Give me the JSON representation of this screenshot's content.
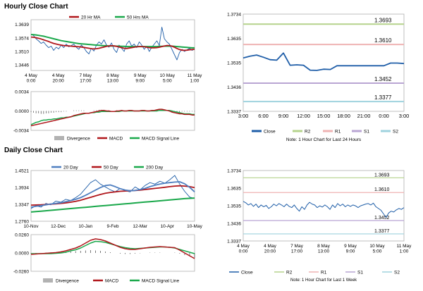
{
  "sections": {
    "hourly_title": "Hourly Close Chart",
    "daily_title": "Daily Close Chart"
  },
  "colors": {
    "close_line": "#1f5ea8",
    "ma20": "#b0161b",
    "ma50": "#1aa84b",
    "ma200": "#1aa84b",
    "r2": "#b5d38c",
    "r1": "#efb3b3",
    "s1": "#b9a5d3",
    "s2": "#9fd2de",
    "divergence": "#555555",
    "macd": "#b0161b",
    "signal": "#1aa84b",
    "ma20_daily": "#4f7fc0"
  },
  "chart_data": [
    {
      "id": "hourly_price",
      "type": "line",
      "title": "Hourly Close Chart",
      "x_labels": [
        "4 May\n0:00",
        "4 May\n20:00",
        "7 May\n17:00",
        "8 May\n13:00",
        "9 May\n9:00",
        "10 May\n5:00",
        "11 May\n1:00"
      ],
      "y_ticks": [
        "1.3639",
        "1.3574",
        "1.3510",
        "1.3446"
      ],
      "ylim": [
        1.342,
        1.366
      ],
      "series": [
        {
          "name": "20 Hr MA",
          "values": [
            1.3578,
            1.3577,
            1.3575,
            1.3572,
            1.3569,
            1.3565,
            1.3561,
            1.3557,
            1.3552,
            1.3548,
            1.3545,
            1.3542,
            1.354,
            1.3538,
            1.3537,
            1.3536,
            1.3535,
            1.3534,
            1.3533,
            1.3532,
            1.3531,
            1.3529,
            1.3527,
            1.3525,
            1.3523,
            1.3522,
            1.3523,
            1.3525,
            1.3528,
            1.3531,
            1.3534,
            1.3536,
            1.3537,
            1.3536,
            1.3534,
            1.3531,
            1.3528,
            1.3525,
            1.3524,
            1.3526,
            1.3528,
            1.353,
            1.3532,
            1.3533,
            1.3533,
            1.3532,
            1.353,
            1.3528,
            1.3527,
            1.3527,
            1.3528,
            1.353,
            1.3533,
            1.3536,
            1.3538,
            1.3538,
            1.3535,
            1.353,
            1.3524,
            1.3519,
            1.3516,
            1.3515,
            1.3516,
            1.3518,
            1.3519,
            1.352
          ]
        },
        {
          "name": "50 Hrs MA",
          "values": [
            1.359,
            1.3589,
            1.3588,
            1.3586,
            1.3584,
            1.3582,
            1.3579,
            1.3576,
            1.3573,
            1.357,
            1.3567,
            1.3564,
            1.3561,
            1.3559,
            1.3557,
            1.3555,
            1.3553,
            1.3551,
            1.3549,
            1.3547,
            1.3546,
            1.3545,
            1.3544,
            1.3543,
            1.3542,
            1.3541,
            1.354,
            1.3539,
            1.3538,
            1.3537,
            1.3537,
            1.3536,
            1.3536,
            1.3536,
            1.3535,
            1.3535,
            1.3534,
            1.3534,
            1.3533,
            1.3533,
            1.3533,
            1.3533,
            1.3533,
            1.3533,
            1.3533,
            1.3533,
            1.3533,
            1.3533,
            1.3533,
            1.3533,
            1.3533,
            1.3534,
            1.3534,
            1.3535,
            1.3535,
            1.3535,
            1.3535,
            1.3534,
            1.3533,
            1.3532,
            1.3531,
            1.353,
            1.3529,
            1.3528,
            1.3527,
            1.3527
          ]
        },
        {
          "name": "Close",
          "values": [
            1.3592,
            1.3585,
            1.357,
            1.356,
            1.3548,
            1.3555,
            1.354,
            1.3528,
            1.3535,
            1.3515,
            1.353,
            1.3522,
            1.354,
            1.3528,
            1.3545,
            1.3532,
            1.3538,
            1.3545,
            1.353,
            1.352,
            1.354,
            1.3528,
            1.351,
            1.3498,
            1.3525,
            1.3512,
            1.354,
            1.3555,
            1.3545,
            1.3565,
            1.354,
            1.353,
            1.355,
            1.352,
            1.3505,
            1.354,
            1.3525,
            1.351,
            1.3545,
            1.356,
            1.3535,
            1.3545,
            1.3528,
            1.3555,
            1.354,
            1.352,
            1.3535,
            1.351,
            1.353,
            1.3545,
            1.356,
            1.3538,
            1.3625,
            1.357,
            1.3555,
            1.3545,
            1.352,
            1.3495,
            1.347,
            1.3505,
            1.352,
            1.351,
            1.3518,
            1.3525,
            1.3515,
            1.3522
          ]
        }
      ],
      "legend": [
        "20 Hr MA",
        "50 Hrs MA"
      ]
    },
    {
      "id": "hourly_macd",
      "type": "line",
      "y_ticks": [
        "0.0034",
        "0.0000",
        "-0.0034"
      ],
      "ylim": [
        -0.0034,
        0.0034
      ],
      "series": [
        {
          "name": "Divergence",
          "values": [
            -0.0002,
            -0.0003,
            -0.0004,
            -0.0004,
            -0.0005,
            -0.0005,
            -0.0004,
            -0.0004,
            -0.0003,
            -0.0003,
            -0.0002,
            -0.0002,
            -0.0002,
            -0.0001,
            -0.0001,
            0.0,
            0.0,
            0.0001,
            0.0001,
            0.0001,
            0.0001,
            0.0001,
            0.0,
            0.0,
            0.0,
            0.0001,
            0.0001,
            0.0002,
            0.0002,
            0.0002,
            0.0001,
            0.0001,
            0.0,
            0.0,
            0.0001,
            0.0001,
            0.0001,
            0.0,
            0.0,
            0.0001,
            0.0001,
            0.0,
            0.0,
            0.0,
            0.0001,
            0.0001,
            0.0,
            0.0,
            0.0001,
            0.0001,
            0.0002,
            0.0002,
            0.0002,
            0.0001,
            0.0,
            -0.0001,
            -0.0002,
            -0.0002,
            -0.0002,
            -0.0002,
            -0.0001,
            -0.0001,
            -0.0001,
            -0.0001,
            -0.0001,
            -0.0001
          ]
        },
        {
          "name": "MACD",
          "values": [
            -0.0026,
            -0.0025,
            -0.0024,
            -0.0023,
            -0.0022,
            -0.0021,
            -0.002,
            -0.0019,
            -0.0018,
            -0.0017,
            -0.0016,
            -0.0015,
            -0.0014,
            -0.0013,
            -0.0012,
            -0.0011,
            -0.001,
            -0.0008,
            -0.0007,
            -0.0006,
            -0.0005,
            -0.0004,
            -0.0004,
            -0.0004,
            -0.0003,
            -0.0002,
            -0.0001,
            0.0,
            0.0001,
            0.0001,
            0.0,
            0.0,
            -0.0001,
            -0.0001,
            0.0,
            0.0,
            0.0001,
            0.0,
            0.0,
            0.0001,
            0.0001,
            0.0,
            0.0,
            0.0,
            0.0001,
            0.0001,
            0.0,
            0.0,
            0.0001,
            0.0001,
            0.0002,
            0.0003,
            0.0003,
            0.0002,
            0.0001,
            0.0,
            -0.0002,
            -0.0003,
            -0.0004,
            -0.0005,
            -0.0005,
            -0.0006,
            -0.0006,
            -0.0006,
            -0.0007,
            -0.0007
          ]
        },
        {
          "name": "MACD Signal Line",
          "values": [
            -0.0024,
            -0.0022,
            -0.002,
            -0.0019,
            -0.0017,
            -0.0016,
            -0.0016,
            -0.0015,
            -0.0015,
            -0.0014,
            -0.0014,
            -0.0013,
            -0.0012,
            -0.0012,
            -0.0011,
            -0.0011,
            -0.001,
            -0.0009,
            -0.0008,
            -0.0007,
            -0.0006,
            -0.0005,
            -0.0004,
            -0.0004,
            -0.0003,
            -0.0003,
            -0.0002,
            -0.0002,
            -0.0001,
            -0.0001,
            -0.0001,
            -0.0001,
            -0.0001,
            -0.0001,
            -0.0001,
            -0.0001,
            0.0,
            0.0,
            0.0,
            0.0,
            0.0,
            0.0,
            0.0,
            0.0,
            0.0,
            0.0,
            0.0,
            0.0,
            0.0,
            0.0,
            0.0,
            0.0001,
            0.0001,
            0.0001,
            0.0001,
            0.0001,
            0.0,
            -0.0001,
            -0.0002,
            -0.0003,
            -0.0004,
            -0.0005,
            -0.0005,
            -0.0005,
            -0.0006,
            -0.0006
          ]
        }
      ],
      "legend": [
        "Divergence",
        "MACD",
        "MACD Signal Line"
      ]
    },
    {
      "id": "hourly_24h",
      "type": "line",
      "x_labels": [
        "3:00",
        "6:00",
        "9:00",
        "12:00",
        "15:00",
        "18:00",
        "21:00",
        "0:00",
        "3:00"
      ],
      "y_ticks": [
        "1.3734",
        "1.3635",
        "1.3535",
        "1.3436",
        "1.3337"
      ],
      "ylim": [
        1.3337,
        1.3734
      ],
      "levels": [
        {
          "name": "R2",
          "value": 1.3693,
          "label": "1.3693"
        },
        {
          "name": "R1",
          "value": 1.361,
          "label": "1.3610"
        },
        {
          "name": "S1",
          "value": 1.3452,
          "label": "1.3452"
        },
        {
          "name": "S2",
          "value": 1.3377,
          "label": "1.3377"
        }
      ],
      "series": [
        {
          "name": "Close",
          "values": [
            1.3555,
            1.3562,
            1.3567,
            1.3558,
            1.3548,
            1.3546,
            1.3575,
            1.3525,
            1.3527,
            1.3525,
            1.3505,
            1.3504,
            1.3509,
            1.3508,
            1.3523,
            1.3523,
            1.3523,
            1.3523,
            1.3523,
            1.3523,
            1.3523,
            1.3523,
            1.3534,
            1.3534,
            1.3532
          ]
        }
      ],
      "legend": [
        "Close",
        "R2",
        "R1",
        "S1",
        "S2"
      ],
      "note": "Note: 1 Hour Chart for Last 24 Hours"
    },
    {
      "id": "daily_price",
      "type": "line",
      "title": "Daily Close Chart",
      "x_labels": [
        "10-Nov",
        "12-Dec",
        "10-Jan",
        "9-Feb",
        "12-Mar",
        "10-Apr",
        "10-May"
      ],
      "y_ticks": [
        "1.4521",
        "1.3934",
        "1.3347",
        "1.2760"
      ],
      "ylim": [
        1.276,
        1.4521
      ],
      "series": [
        {
          "name": "20 Day",
          "values": [
            1.325,
            1.328,
            1.33,
            1.333,
            1.336,
            1.338,
            1.34,
            1.344,
            1.348,
            1.352,
            1.358,
            1.366,
            1.375,
            1.384,
            1.393,
            1.4,
            1.402,
            1.396,
            1.389,
            1.384,
            1.382,
            1.383,
            1.386,
            1.39,
            1.396,
            1.401,
            1.405,
            1.408,
            1.41,
            1.412,
            1.413,
            1.406,
            1.394,
            1.378
          ]
        },
        {
          "name": "50 Day",
          "values": [
            1.332,
            1.3325,
            1.333,
            1.334,
            1.3355,
            1.3365,
            1.338,
            1.3395,
            1.342,
            1.345,
            1.349,
            1.354,
            1.359,
            1.364,
            1.369,
            1.373,
            1.376,
            1.378,
            1.38,
            1.381,
            1.382,
            1.383,
            1.384,
            1.386,
            1.388,
            1.39,
            1.392,
            1.394,
            1.396,
            1.398,
            1.399,
            1.398,
            1.396,
            1.393
          ]
        },
        {
          "name": "200 Day",
          "values": [
            1.308,
            1.3095,
            1.311,
            1.3125,
            1.314,
            1.3155,
            1.317,
            1.3185,
            1.32,
            1.3215,
            1.323,
            1.3245,
            1.326,
            1.3275,
            1.329,
            1.3305,
            1.332,
            1.3335,
            1.335,
            1.3365,
            1.338,
            1.3395,
            1.341,
            1.3425,
            1.344,
            1.3455,
            1.347,
            1.3485,
            1.35,
            1.3515,
            1.353,
            1.3545,
            1.3555,
            1.3565
          ]
        },
        {
          "name": "Close",
          "values": [
            1.32,
            1.33,
            1.325,
            1.338,
            1.333,
            1.346,
            1.342,
            1.352,
            1.348,
            1.358,
            1.37,
            1.39,
            1.41,
            1.42,
            1.405,
            1.395,
            1.385,
            1.378,
            1.39,
            1.382,
            1.378,
            1.395,
            1.385,
            1.4,
            1.41,
            1.405,
            1.415,
            1.408,
            1.42,
            1.435,
            1.405,
            1.38,
            1.36,
            1.355
          ]
        }
      ],
      "legend": [
        "20 Day",
        "50 Day",
        "200 Day"
      ]
    },
    {
      "id": "daily_macd",
      "type": "line",
      "y_ticks": [
        "0.0260",
        "0.0000",
        "-0.0260"
      ],
      "ylim": [
        -0.026,
        0.026
      ],
      "series": [
        {
          "name": "Divergence",
          "values": [
            -0.001,
            -0.0005,
            0.0,
            0.0005,
            0.001,
            0.001,
            0.0015,
            0.002,
            0.002,
            0.0025,
            0.003,
            0.0035,
            0.004,
            0.0035,
            0.003,
            0.002,
            0.001,
            0.0,
            -0.001,
            -0.0015,
            -0.0015,
            -0.001,
            -0.0005,
            0.0,
            0.0005,
            0.0005,
            0.0005,
            0.0,
            0.0,
            0.0005,
            -0.001,
            -0.003,
            -0.005,
            -0.007
          ]
        },
        {
          "name": "MACD",
          "values": [
            -0.002,
            -0.0015,
            -0.001,
            -0.0005,
            0.0,
            0.0005,
            0.0015,
            0.003,
            0.005,
            0.007,
            0.01,
            0.014,
            0.018,
            0.02,
            0.019,
            0.017,
            0.014,
            0.011,
            0.008,
            0.006,
            0.005,
            0.005,
            0.006,
            0.007,
            0.008,
            0.0085,
            0.009,
            0.0085,
            0.008,
            0.0075,
            0.004,
            0.0,
            -0.004,
            -0.008
          ]
        },
        {
          "name": "MACD Signal Line",
          "values": [
            -0.001,
            -0.001,
            -0.001,
            -0.001,
            -0.001,
            -0.0005,
            0.0,
            0.001,
            0.003,
            0.0045,
            0.007,
            0.0105,
            0.014,
            0.0165,
            0.016,
            0.015,
            0.013,
            0.011,
            0.009,
            0.0075,
            0.0065,
            0.006,
            0.0065,
            0.007,
            0.0075,
            0.008,
            0.0085,
            0.0085,
            0.008,
            0.007,
            0.005,
            0.003,
            0.001,
            -0.001
          ]
        }
      ],
      "legend": [
        "Divergence",
        "MACD",
        "MACD Signal Line"
      ]
    },
    {
      "id": "daily_week",
      "type": "line",
      "x_labels": [
        "4 May\n0:00",
        "4 May\n20:00",
        "7 May\n17:00",
        "8 May\n13:00",
        "9 May\n9:00",
        "10 May\n5:00",
        "11 May\n1:00"
      ],
      "y_ticks": [
        "1.3734",
        "1.3635",
        "1.3535",
        "1.3436",
        "1.3337"
      ],
      "ylim": [
        1.3337,
        1.3734
      ],
      "levels": [
        {
          "name": "R2",
          "value": 1.3693,
          "label": "1.3693"
        },
        {
          "name": "R1",
          "value": 1.361,
          "label": "1.3610"
        },
        {
          "name": "S1",
          "value": 1.3452,
          "label": "1.3452"
        },
        {
          "name": "S2",
          "value": 1.3377,
          "label": "1.3377"
        }
      ],
      "series": [
        {
          "name": "Close",
          "values": [
            1.356,
            1.3552,
            1.354,
            1.3548,
            1.3532,
            1.3545,
            1.3525,
            1.354,
            1.353,
            1.3538,
            1.352,
            1.353,
            1.3545,
            1.3535,
            1.3548,
            1.354,
            1.353,
            1.3545,
            1.3532,
            1.3525,
            1.354,
            1.352,
            1.3505,
            1.353,
            1.3515,
            1.354,
            1.3555,
            1.3545,
            1.354,
            1.3525,
            1.3535,
            1.3528,
            1.354,
            1.353,
            1.3515,
            1.354,
            1.3525,
            1.3548,
            1.3535,
            1.3545,
            1.353,
            1.354,
            1.3532,
            1.354,
            1.3535,
            1.3525,
            1.3535,
            1.354,
            1.3545,
            1.3548,
            1.354,
            1.355,
            1.353,
            1.352,
            1.351,
            1.349,
            1.347,
            1.3495,
            1.3505,
            1.35,
            1.3512,
            1.352,
            1.3515,
            1.3525
          ]
        }
      ],
      "legend": [
        "Close",
        "R2",
        "R1",
        "S1",
        "S2"
      ],
      "note": "Note: 1 Hour Chart for Last 1 Week"
    }
  ]
}
